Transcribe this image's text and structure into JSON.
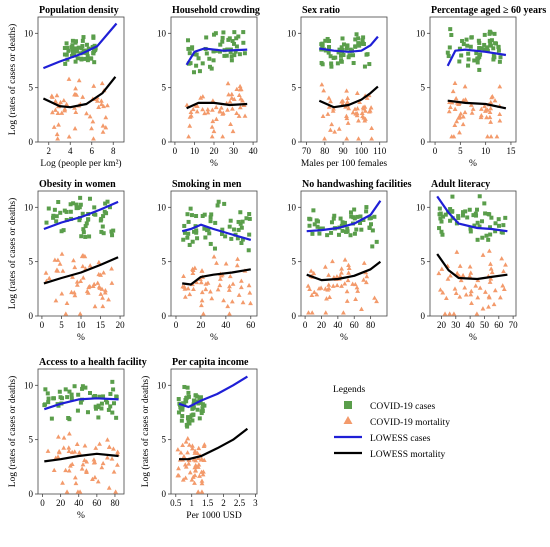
{
  "legend": {
    "title": "Legends",
    "items": [
      {
        "label": "COVID-19 cases",
        "kind": "square",
        "color": "#5a9e4b"
      },
      {
        "label": "COVID-19 mortality",
        "kind": "triangle",
        "color": "#f39a6b"
      },
      {
        "label": "LOWESS cases",
        "kind": "line",
        "color": "#1f1fd6"
      },
      {
        "label": "LOWESS mortality",
        "kind": "line",
        "color": "#000000"
      }
    ]
  },
  "colors": {
    "cases": "#5a9e4b",
    "mortality": "#f39a6b",
    "lowess_cases": "#1f1fd6",
    "lowess_mortality": "#000000"
  },
  "chart_data": [
    {
      "type": "scatter",
      "title": "Population density",
      "xlabel": "Log (people per km²)",
      "ylabel": "Log (rates of cases or deaths)",
      "xlim": [
        1,
        9
      ],
      "ylim": [
        0,
        11.5
      ],
      "xticks": [
        2,
        4,
        6,
        8
      ],
      "yticks": [
        0,
        5,
        10
      ],
      "cases_x": [
        3.5,
        6.5
      ],
      "cases_y": [
        6.8,
        9.8
      ],
      "mort_x": [
        2.2,
        7.6
      ],
      "mort_y": [
        0.3,
        5.2
      ],
      "lowess_cases": [
        [
          1.5,
          6.8
        ],
        [
          3,
          7.4
        ],
        [
          5,
          8.1
        ],
        [
          6.5,
          8.8
        ],
        [
          8.3,
          10.9
        ]
      ],
      "lowess_mortality": [
        [
          1.5,
          4.0
        ],
        [
          3,
          3.3
        ],
        [
          4,
          3.2
        ],
        [
          5.5,
          3.5
        ],
        [
          7,
          4.5
        ],
        [
          8.2,
          6.0
        ]
      ]
    },
    {
      "type": "scatter",
      "title": "Household crowding",
      "xlabel": "%",
      "ylabel": "",
      "xlim": [
        -2,
        42
      ],
      "ylim": [
        0,
        11.5
      ],
      "xticks": [
        0,
        10,
        20,
        30,
        40
      ],
      "yticks": [
        0,
        5,
        10
      ],
      "cases_x": [
        6,
        36
      ],
      "cases_y": [
        6.5,
        10.5
      ],
      "mort_x": [
        6,
        36
      ],
      "mort_y": [
        0.5,
        5.2
      ],
      "lowess_cases": [
        [
          6,
          7.1
        ],
        [
          10,
          8.3
        ],
        [
          15,
          8.6
        ],
        [
          25,
          8.4
        ],
        [
          37,
          8.5
        ]
      ],
      "lowess_mortality": [
        [
          6,
          3.1
        ],
        [
          12,
          3.6
        ],
        [
          20,
          3.6
        ],
        [
          28,
          3.4
        ],
        [
          37,
          3.5
        ]
      ]
    },
    {
      "type": "scatter",
      "title": "Sex ratio",
      "xlabel": "Males per 100 females",
      "ylabel": "",
      "xlim": [
        67,
        114
      ],
      "ylim": [
        0,
        11.5
      ],
      "xticks": [
        70,
        80,
        90,
        100,
        110
      ],
      "yticks": [
        0,
        5,
        10
      ],
      "cases_x": [
        78,
        106
      ],
      "cases_y": [
        7.0,
        10.0
      ],
      "mort_x": [
        78,
        106
      ],
      "mort_y": [
        0.3,
        5.0
      ],
      "lowess_cases": [
        [
          77,
          8.6
        ],
        [
          85,
          8.4
        ],
        [
          93,
          8.3
        ],
        [
          100,
          8.4
        ],
        [
          105,
          8.9
        ],
        [
          109,
          9.7
        ]
      ],
      "lowess_mortality": [
        [
          77,
          3.8
        ],
        [
          85,
          3.2
        ],
        [
          93,
          3.4
        ],
        [
          100,
          3.9
        ],
        [
          105,
          4.5
        ],
        [
          109,
          5.1
        ]
      ]
    },
    {
      "type": "scatter",
      "title": "Percentage aged ≥ 60 years",
      "xlabel": "%",
      "ylabel": "",
      "xlim": [
        -1,
        16
      ],
      "ylim": [
        0,
        11.5
      ],
      "xticks": [
        0,
        5,
        10,
        15
      ],
      "yticks": [
        0,
        5,
        10
      ],
      "cases_x": [
        2.5,
        13
      ],
      "cases_y": [
        6.5,
        10.8
      ],
      "mort_x": [
        2.5,
        13
      ],
      "mort_y": [
        0.5,
        5.2
      ],
      "lowess_cases": [
        [
          2.5,
          7.0
        ],
        [
          4,
          8.4
        ],
        [
          6,
          8.5
        ],
        [
          10,
          8.3
        ],
        [
          14,
          8.0
        ]
      ],
      "lowess_mortality": [
        [
          2.5,
          3.8
        ],
        [
          6,
          3.6
        ],
        [
          10,
          3.5
        ],
        [
          14,
          3.1
        ]
      ]
    },
    {
      "type": "scatter",
      "title": "Obesity in women",
      "xlabel": "%",
      "ylabel": "Log (rates of cases or deaths)",
      "xlim": [
        -1,
        21
      ],
      "ylim": [
        0,
        11.5
      ],
      "xticks": [
        0,
        5,
        10,
        15,
        20
      ],
      "yticks": [
        0,
        5,
        10
      ],
      "cases_x": [
        0.5,
        19
      ],
      "cases_y": [
        6.8,
        11.0
      ],
      "mort_x": [
        0.5,
        19
      ],
      "mort_y": [
        0.2,
        5.3
      ],
      "lowess_cases": [
        [
          0.5,
          8.0
        ],
        [
          5,
          8.6
        ],
        [
          10,
          9.1
        ],
        [
          15,
          9.8
        ],
        [
          19.5,
          10.5
        ]
      ],
      "lowess_mortality": [
        [
          0.5,
          3.0
        ],
        [
          5,
          3.5
        ],
        [
          10,
          4.0
        ],
        [
          15,
          4.7
        ],
        [
          19.5,
          5.4
        ]
      ]
    },
    {
      "type": "scatter",
      "title": "Smoking in men",
      "xlabel": "%",
      "ylabel": "",
      "xlim": [
        -4,
        65
      ],
      "ylim": [
        0,
        11.5
      ],
      "xticks": [
        0,
        20,
        40,
        60
      ],
      "yticks": [
        0,
        5,
        10
      ],
      "cases_x": [
        5,
        60
      ],
      "cases_y": [
        6.0,
        10.5
      ],
      "mort_x": [
        5,
        60
      ],
      "mort_y": [
        0.2,
        5.0
      ],
      "lowess_cases": [
        [
          5,
          7.8
        ],
        [
          12,
          8.0
        ],
        [
          20,
          8.4
        ],
        [
          30,
          8.0
        ],
        [
          45,
          7.5
        ],
        [
          60,
          7.0
        ]
      ],
      "lowess_mortality": [
        [
          5,
          3.0
        ],
        [
          12,
          2.9
        ],
        [
          20,
          3.6
        ],
        [
          30,
          3.8
        ],
        [
          45,
          4.0
        ],
        [
          60,
          4.3
        ]
      ]
    },
    {
      "type": "scatter",
      "title": "No handwashing facilities",
      "xlabel": "%",
      "ylabel": "",
      "xlim": [
        -5,
        100
      ],
      "ylim": [
        0,
        11.5
      ],
      "xticks": [
        0,
        20,
        40,
        60,
        80
      ],
      "yticks": [
        0,
        5,
        10
      ],
      "cases_x": [
        2,
        88
      ],
      "cases_y": [
        6.5,
        10.0
      ],
      "mort_x": [
        2,
        88
      ],
      "mort_y": [
        0.3,
        4.8
      ],
      "lowess_cases": [
        [
          2,
          7.8
        ],
        [
          20,
          7.9
        ],
        [
          40,
          8.1
        ],
        [
          60,
          8.5
        ],
        [
          80,
          9.3
        ],
        [
          92,
          10.6
        ]
      ],
      "lowess_mortality": [
        [
          2,
          3.8
        ],
        [
          20,
          3.3
        ],
        [
          40,
          3.4
        ],
        [
          60,
          3.7
        ],
        [
          80,
          4.3
        ],
        [
          92,
          5.0
        ]
      ]
    },
    {
      "type": "scatter",
      "title": "Adult literacy",
      "xlabel": "%",
      "ylabel": "",
      "xlim": [
        12,
        72
      ],
      "ylim": [
        0,
        11.5
      ],
      "xticks": [
        20,
        30,
        40,
        50,
        60,
        70
      ],
      "yticks": [
        0,
        5,
        10
      ],
      "cases_x": [
        18,
        65
      ],
      "cases_y": [
        6.8,
        11.0
      ],
      "mort_x": [
        18,
        65
      ],
      "mort_y": [
        0.2,
        5.5
      ],
      "lowess_cases": [
        [
          17,
          11.0
        ],
        [
          25,
          9.5
        ],
        [
          32,
          8.5
        ],
        [
          45,
          8.1
        ],
        [
          55,
          8.0
        ],
        [
          66,
          7.8
        ]
      ],
      "lowess_mortality": [
        [
          17,
          5.7
        ],
        [
          25,
          4.2
        ],
        [
          32,
          3.5
        ],
        [
          45,
          3.4
        ],
        [
          55,
          3.6
        ],
        [
          66,
          3.8
        ]
      ]
    },
    {
      "type": "scatter",
      "title": "Access to a health facility",
      "xlabel": "%",
      "ylabel": "Log (rates of cases or deaths)",
      "xlim": [
        -5,
        90
      ],
      "ylim": [
        0,
        11.5
      ],
      "xticks": [
        0,
        20,
        40,
        60,
        80
      ],
      "yticks": [
        0,
        5,
        10
      ],
      "cases_x": [
        2,
        84
      ],
      "cases_y": [
        6.8,
        10.8
      ],
      "mort_x": [
        2,
        84
      ],
      "mort_y": [
        0.2,
        5.2
      ],
      "lowess_cases": [
        [
          2,
          7.8
        ],
        [
          20,
          8.3
        ],
        [
          40,
          8.7
        ],
        [
          60,
          8.8
        ],
        [
          84,
          8.7
        ]
      ],
      "lowess_mortality": [
        [
          2,
          3.0
        ],
        [
          20,
          3.2
        ],
        [
          40,
          3.5
        ],
        [
          60,
          3.7
        ],
        [
          84,
          3.5
        ]
      ]
    },
    {
      "type": "scatter",
      "title": "Per capita income",
      "xlabel": "Per 1000 USD",
      "ylabel": "Log (rates of cases or deaths)",
      "xlim": [
        0.35,
        3.05
      ],
      "ylim": [
        0,
        11.5
      ],
      "xticks": [
        0.5,
        1,
        1.5,
        2,
        2.5,
        3
      ],
      "yticks": [
        0,
        5,
        10
      ],
      "cases_x": [
        0.55,
        1.4
      ],
      "cases_y": [
        6.0,
        10.0
      ],
      "mort_x": [
        0.55,
        1.4
      ],
      "mort_y": [
        0.2,
        5.0
      ],
      "lowess_cases": [
        [
          0.6,
          8.3
        ],
        [
          0.9,
          8.0
        ],
        [
          1.3,
          8.6
        ],
        [
          1.8,
          9.2
        ],
        [
          2.3,
          10.0
        ],
        [
          2.75,
          10.8
        ]
      ],
      "lowess_mortality": [
        [
          0.6,
          3.2
        ],
        [
          0.9,
          3.2
        ],
        [
          1.3,
          3.5
        ],
        [
          1.8,
          4.2
        ],
        [
          2.3,
          5.0
        ],
        [
          2.75,
          6.0
        ]
      ]
    }
  ]
}
